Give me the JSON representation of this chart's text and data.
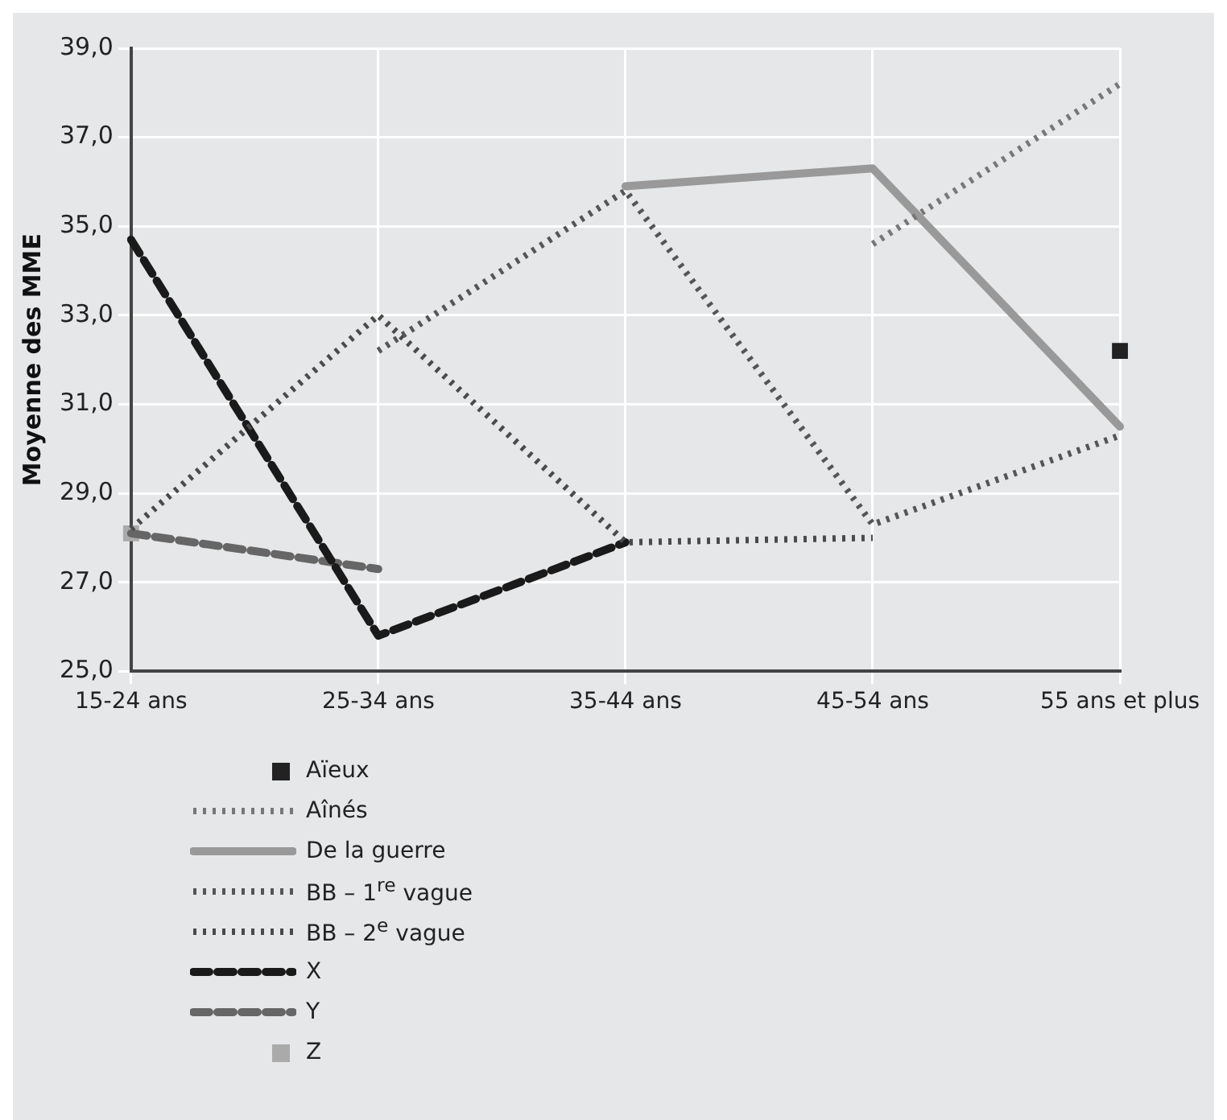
{
  "chart_data": {
    "type": "line",
    "ylabel": "Moyenne des MME",
    "categories": [
      "15-24 ans",
      "25-34 ans",
      "35-44 ans",
      "45-54 ans",
      "55 ans et plus"
    ],
    "ylim": [
      25,
      39
    ],
    "yticks": [
      {
        "value": 25,
        "label": "25,0"
      },
      {
        "value": 27,
        "label": "27,0"
      },
      {
        "value": 29,
        "label": "29,0"
      },
      {
        "value": 31,
        "label": "31,0"
      },
      {
        "value": 33,
        "label": "33,0"
      },
      {
        "value": 35,
        "label": "35,0"
      },
      {
        "value": 37,
        "label": "37,0"
      },
      {
        "value": 39,
        "label": "39,0"
      }
    ],
    "grid": true,
    "legend": "bottom",
    "marker": "none",
    "series": [
      {
        "name": "Aïeux",
        "type": "scatter",
        "marker": "square",
        "color": "#222222",
        "values": [
          null,
          null,
          null,
          null,
          32.2
        ]
      },
      {
        "name": "Aînés",
        "line_style": "dotted",
        "color": "#777777",
        "values": [
          null,
          null,
          null,
          34.6,
          38.2
        ]
      },
      {
        "name": "De la guerre",
        "line_style": "solid",
        "color": "#999999",
        "values": [
          null,
          null,
          35.9,
          36.3,
          30.5
        ]
      },
      {
        "name": "BB – 1$^{re}$ vague",
        "line_style": "dotted",
        "color": "#555555",
        "values": [
          null,
          32.2,
          35.8,
          28.3,
          30.3
        ]
      },
      {
        "name": "BB – 2$^{e}$ vague",
        "line_style": "dotted",
        "color": "#4a4a4a",
        "values": [
          28.2,
          33.0,
          27.9,
          28.0,
          null
        ]
      },
      {
        "name": "X",
        "line_style": "dashed",
        "color": "#1a1a1a",
        "values": [
          34.7,
          25.8,
          27.9,
          null,
          null
        ]
      },
      {
        "name": "Y",
        "line_style": "dashed",
        "color": "#666666",
        "values": [
          28.1,
          27.3,
          null,
          null,
          null
        ]
      },
      {
        "name": "Z",
        "type": "scatter",
        "marker": "square",
        "color": "#aaaaaa",
        "values": [
          28.1,
          null,
          null,
          null,
          null
        ]
      }
    ]
  }
}
